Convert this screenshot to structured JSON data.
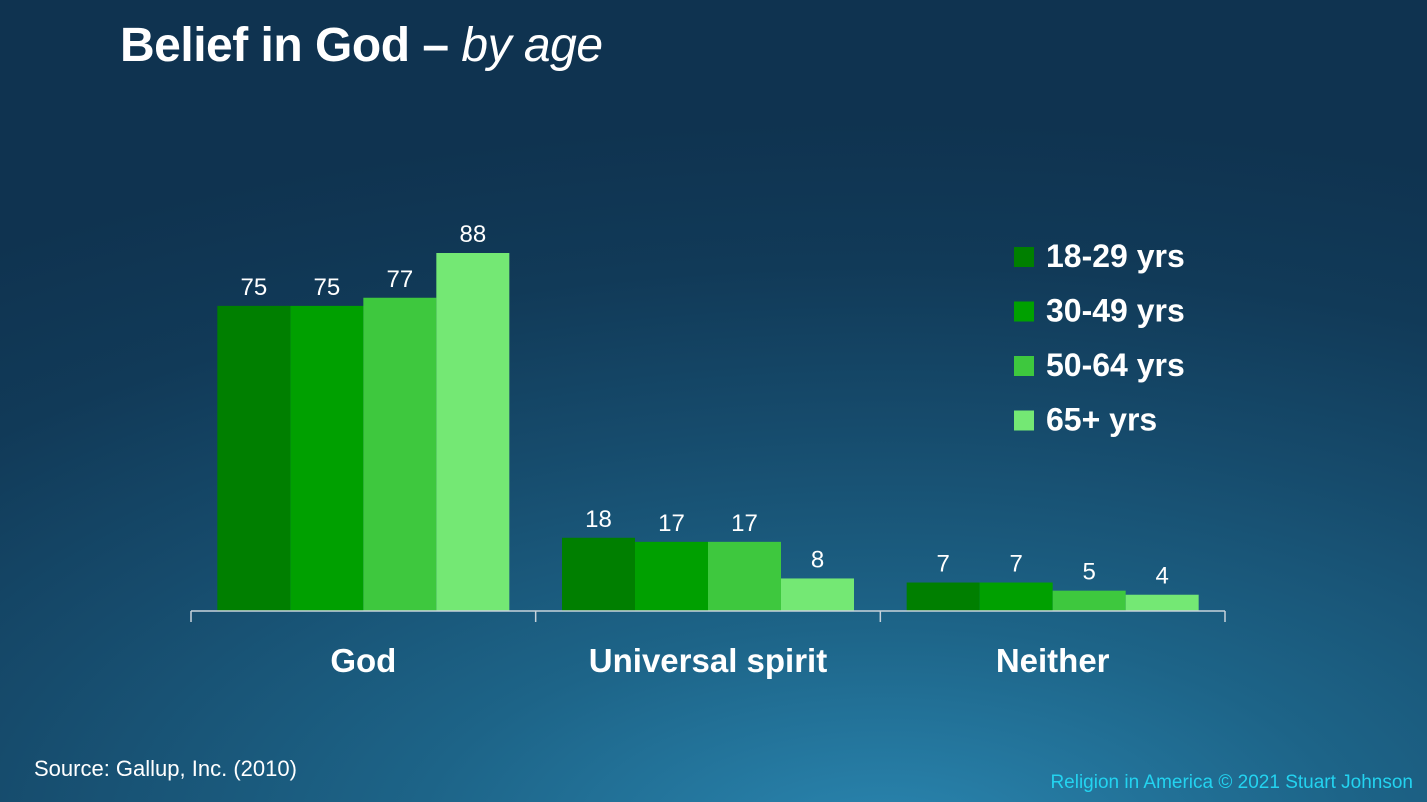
{
  "slide": {
    "title_main": "Belief in God – ",
    "title_sub": "by age",
    "source": "Source: Gallup, Inc. (2010)",
    "credit": "Religion in America © 2021 Stuart Johnson"
  },
  "chart_data": {
    "type": "bar",
    "categories": [
      "God",
      "Universal spirit",
      "Neither"
    ],
    "series": [
      {
        "name": "18-29 yrs",
        "values": [
          75,
          18,
          7
        ],
        "color": "#007f00"
      },
      {
        "name": "30-49 yrs",
        "values": [
          75,
          17,
          7
        ],
        "color": "#00a000"
      },
      {
        "name": "50-64 yrs",
        "values": [
          77,
          17,
          5
        ],
        "color": "#3ec83e"
      },
      {
        "name": "65+ yrs",
        "values": [
          88,
          8,
          4
        ],
        "color": "#74e874"
      }
    ],
    "ylim": [
      0,
      88
    ],
    "grid": false,
    "legend": "top-right"
  }
}
